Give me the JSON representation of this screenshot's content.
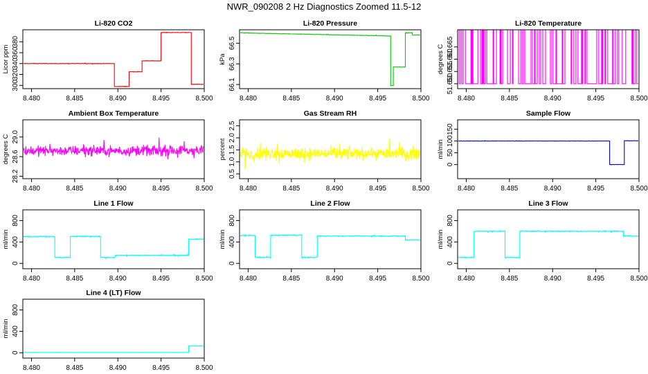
{
  "page_title": "NWR_090208  2 Hz Diagnostics Zoomed 11.5-12",
  "chart_data": [
    {
      "type": "line",
      "title": "Li-820 CO2",
      "xlabel": "",
      "ylabel": "Licor ppm",
      "xlim": [
        8.479,
        8.5
      ],
      "ylim": [
        294,
        402
      ],
      "x_ticks": [
        8.48,
        8.485,
        8.49,
        8.495,
        8.5
      ],
      "x_tick_labels": [
        "8.480",
        "8.485",
        "8.490",
        "8.495",
        "8.500"
      ],
      "y_ticks": [
        300,
        320,
        340,
        360,
        380
      ],
      "y_tick_labels": [
        "300",
        "320",
        "340",
        "360",
        "380"
      ],
      "series": [
        {
          "color": "#ff0000",
          "noise": 0.6,
          "style": "line",
          "segments": [
            [
              8.4791,
              8.4896,
              340
            ],
            [
              8.4896,
              8.4913,
              298
            ],
            [
              8.4913,
              8.4928,
              325
            ],
            [
              8.4928,
              8.495,
              345
            ],
            [
              8.495,
              8.4985,
              397
            ],
            [
              8.4985,
              8.4999,
              302
            ]
          ]
        }
      ]
    },
    {
      "type": "line",
      "title": "Li-820 Pressure",
      "xlabel": "",
      "ylabel": "kPa",
      "xlim": [
        8.479,
        8.5
      ],
      "ylim": [
        66.06,
        66.63
      ],
      "x_ticks": [
        8.48,
        8.485,
        8.49,
        8.495,
        8.5
      ],
      "x_tick_labels": [
        "8.480",
        "8.485",
        "8.490",
        "8.495",
        "8.500"
      ],
      "y_ticks": [
        66.1,
        66.3,
        66.5
      ],
      "y_tick_labels": [
        "66.1",
        "66.3",
        "66.5"
      ],
      "series": [
        {
          "color": "#00cc00",
          "noise": 0.003,
          "style": "line",
          "segments": [
            [
              8.4791,
              8.4965,
              66.6,
              66.57
            ],
            [
              8.4965,
              8.4968,
              66.09
            ],
            [
              8.4968,
              8.4982,
              66.27
            ],
            [
              8.4982,
              8.499,
              66.6
            ],
            [
              8.499,
              8.4999,
              66.58
            ]
          ]
        }
      ]
    },
    {
      "type": "line",
      "title": "Li-820 Temperature",
      "xlabel": "",
      "ylabel": "degrees C",
      "xlim": [
        8.479,
        8.5
      ],
      "ylim": [
        51.648,
        51.672
      ],
      "x_ticks": [
        8.48,
        8.485,
        8.49,
        8.495,
        8.5
      ],
      "x_tick_labels": [
        "8.480",
        "8.485",
        "8.490",
        "8.495",
        "8.500"
      ],
      "y_ticks": [
        51.65,
        51.655,
        51.66,
        51.665
      ],
      "y_tick_labels": [
        "51.650",
        "51.655",
        "51.660",
        "51.665"
      ],
      "series": [
        {
          "color": "#ff00ff",
          "style": "binary",
          "low": 51.65,
          "high": 51.672,
          "toggle_density": 0.55,
          "noise": 0
        }
      ]
    },
    {
      "type": "line",
      "title": "Ambient Box Temperature",
      "xlabel": "",
      "ylabel": "degrees C",
      "xlim": [
        8.479,
        8.5
      ],
      "ylim": [
        28.15,
        29.35
      ],
      "x_ticks": [
        8.48,
        8.485,
        8.49,
        8.495,
        8.5
      ],
      "x_tick_labels": [
        "8.480",
        "8.485",
        "8.490",
        "8.495",
        "8.500"
      ],
      "y_ticks": [
        28.2,
        28.6,
        29.0
      ],
      "y_tick_labels": [
        "28.2",
        "28.6",
        "29.0"
      ],
      "series": [
        {
          "color": "#ff00ff",
          "noise": 0.15,
          "style": "line",
          "segments": [
            [
              8.4791,
              8.4999,
              28.72
            ]
          ]
        }
      ]
    },
    {
      "type": "line",
      "title": "Gas Stream RH",
      "xlabel": "",
      "ylabel": "percent",
      "xlim": [
        8.479,
        8.5
      ],
      "ylim": [
        0.3,
        2.75
      ],
      "x_ticks": [
        8.48,
        8.485,
        8.49,
        8.495,
        8.5
      ],
      "x_tick_labels": [
        "8.480",
        "8.485",
        "8.490",
        "8.495",
        "8.500"
      ],
      "y_ticks": [
        0.5,
        1.0,
        1.5,
        2.0,
        2.5
      ],
      "y_tick_labels": [
        "0.5",
        "1.0",
        "1.5",
        "2.0",
        "2.5"
      ],
      "series": [
        {
          "color": "#ffff00",
          "noise": 0.38,
          "style": "line",
          "segments": [
            [
              8.4791,
              8.4999,
              1.35
            ]
          ]
        }
      ]
    },
    {
      "type": "line",
      "title": "Sample Flow",
      "xlabel": "",
      "ylabel": "ml/min",
      "xlim": [
        8.479,
        8.5
      ],
      "ylim": [
        -60,
        190
      ],
      "x_ticks": [
        8.48,
        8.485,
        8.49,
        8.495,
        8.5
      ],
      "x_tick_labels": [
        "8.480",
        "8.485",
        "8.490",
        "8.495",
        "8.500"
      ],
      "y_ticks": [
        0,
        50,
        100,
        150
      ],
      "y_tick_labels": [
        "0",
        "50",
        "100",
        "150"
      ],
      "series": [
        {
          "color": "#0000cc",
          "noise": 1.0,
          "style": "line",
          "segments": [
            [
              8.4791,
              8.4966,
              100
            ],
            [
              8.4966,
              8.4983,
              0
            ],
            [
              8.4983,
              8.4999,
              101
            ]
          ]
        }
      ]
    },
    {
      "type": "line",
      "title": "Line 1 Flow",
      "xlabel": "",
      "ylabel": "ml/min",
      "xlim": [
        8.479,
        8.5
      ],
      "ylim": [
        -100,
        1000
      ],
      "x_ticks": [
        8.48,
        8.485,
        8.49,
        8.495,
        8.5
      ],
      "x_tick_labels": [
        "8.480",
        "8.485",
        "8.490",
        "8.495",
        "8.500"
      ],
      "y_ticks": [
        0,
        400,
        800
      ],
      "y_tick_labels": [
        "0",
        "400",
        "800"
      ],
      "series": [
        {
          "color": "#00ffff",
          "noise": 12,
          "style": "line",
          "segments": [
            [
              8.4791,
              8.4827,
              500
            ],
            [
              8.4827,
              8.4845,
              110
            ],
            [
              8.4845,
              8.488,
              505
            ],
            [
              8.488,
              8.4897,
              110
            ],
            [
              8.4897,
              8.4982,
              150
            ],
            [
              8.4982,
              8.4999,
              450
            ]
          ]
        }
      ]
    },
    {
      "type": "line",
      "title": "Line 2 Flow",
      "xlabel": "",
      "ylabel": "ml/min",
      "xlim": [
        8.479,
        8.5
      ],
      "ylim": [
        -100,
        1000
      ],
      "x_ticks": [
        8.48,
        8.485,
        8.49,
        8.495,
        8.5
      ],
      "x_tick_labels": [
        "8.480",
        "8.485",
        "8.490",
        "8.495",
        "8.500"
      ],
      "y_ticks": [
        0,
        400,
        800
      ],
      "y_tick_labels": [
        "0",
        "400",
        "800"
      ],
      "series": [
        {
          "color": "#00ffff",
          "noise": 12,
          "style": "line",
          "segments": [
            [
              8.4791,
              8.4808,
              520
            ],
            [
              8.4808,
              8.4826,
              110
            ],
            [
              8.4826,
              8.4862,
              525
            ],
            [
              8.4862,
              8.488,
              110
            ],
            [
              8.488,
              8.4982,
              510
            ],
            [
              8.4982,
              8.4999,
              440
            ]
          ]
        }
      ]
    },
    {
      "type": "line",
      "title": "Line 3 Flow",
      "xlabel": "",
      "ylabel": "ml/min",
      "xlim": [
        8.479,
        8.5
      ],
      "ylim": [
        -100,
        1000
      ],
      "x_ticks": [
        8.48,
        8.485,
        8.49,
        8.495,
        8.5
      ],
      "x_tick_labels": [
        "8.480",
        "8.485",
        "8.490",
        "8.495",
        "8.500"
      ],
      "y_ticks": [
        0,
        400,
        800
      ],
      "y_tick_labels": [
        "0",
        "400",
        "800"
      ],
      "series": [
        {
          "color": "#00ffff",
          "noise": 12,
          "style": "line",
          "segments": [
            [
              8.4791,
              8.4809,
              110
            ],
            [
              8.4809,
              8.4845,
              600
            ],
            [
              8.4845,
              8.4862,
              110
            ],
            [
              8.4862,
              8.4982,
              600
            ],
            [
              8.4982,
              8.4999,
              510
            ]
          ]
        }
      ]
    },
    {
      "type": "line",
      "title": "Line 4 (LT) Flow",
      "xlabel": "",
      "ylabel": "ml/min",
      "xlim": [
        8.479,
        8.5
      ],
      "ylim": [
        -100,
        1000
      ],
      "x_ticks": [
        8.48,
        8.485,
        8.49,
        8.495,
        8.5
      ],
      "x_tick_labels": [
        "8.480",
        "8.485",
        "8.490",
        "8.495",
        "8.500"
      ],
      "y_ticks": [
        0,
        400,
        800
      ],
      "y_tick_labels": [
        "0",
        "400",
        "800"
      ],
      "series": [
        {
          "color": "#00ffff",
          "noise": 3,
          "style": "line",
          "segments": [
            [
              8.4791,
              8.4982,
              5
            ],
            [
              8.4982,
              8.4999,
              125
            ]
          ]
        }
      ]
    }
  ]
}
